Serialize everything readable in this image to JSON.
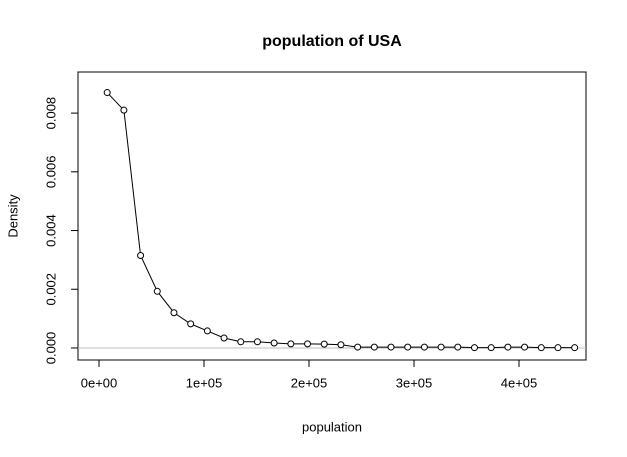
{
  "chart_data": {
    "type": "line",
    "title": "population of USA",
    "x_label": "population",
    "y_label": "Density",
    "x": [
      7800,
      23700,
      39600,
      55500,
      71400,
      87300,
      103200,
      119100,
      135000,
      150900,
      166800,
      182700,
      198600,
      214500,
      230400,
      246300,
      262200,
      278100,
      294000,
      309900,
      325800,
      341700,
      357600,
      373500,
      389400,
      405300,
      421200,
      437100,
      453000
    ],
    "series": [
      {
        "name": "density",
        "color": "#000000",
        "values": [
          0.0087,
          0.0081,
          0.00315,
          0.00193,
          0.0012,
          0.00082,
          0.00058,
          0.00034,
          0.00021,
          0.00021,
          0.00017,
          0.00014,
          0.00014,
          0.00013,
          0.00011,
          3e-05,
          3e-05,
          3e-05,
          3e-05,
          3e-05,
          3e-05,
          3e-05,
          1e-05,
          1e-05,
          3e-05,
          3e-05,
          1e-05,
          1e-05,
          1e-05
        ]
      }
    ],
    "xlim": [
      -20000,
      463800
    ],
    "ylim": [
      -0.00041,
      0.0094
    ],
    "xticks": [
      {
        "value": 0,
        "label": "0e+00"
      },
      {
        "value": 100000,
        "label": "1e+05"
      },
      {
        "value": 200000,
        "label": "2e+05"
      },
      {
        "value": 300000,
        "label": "3e+05"
      },
      {
        "value": 400000,
        "label": "4e+05"
      }
    ],
    "yticks": [
      {
        "value": 0,
        "label": "0.000"
      },
      {
        "value": 0.002,
        "label": "0.002"
      },
      {
        "value": 0.004,
        "label": "0.004"
      },
      {
        "value": 0.006,
        "label": "0.006"
      },
      {
        "value": 0.008,
        "label": "0.008"
      }
    ]
  }
}
